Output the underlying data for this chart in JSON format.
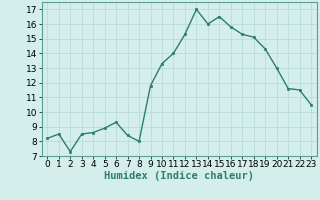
{
  "x": [
    0,
    1,
    2,
    3,
    4,
    5,
    6,
    7,
    8,
    9,
    10,
    11,
    12,
    13,
    14,
    15,
    16,
    17,
    18,
    19,
    20,
    21,
    22,
    23
  ],
  "y": [
    8.2,
    8.5,
    7.3,
    8.5,
    8.6,
    8.9,
    9.3,
    8.4,
    8.0,
    11.8,
    13.3,
    14.0,
    15.3,
    17.0,
    16.0,
    16.5,
    15.8,
    15.3,
    15.1,
    14.3,
    13.0,
    11.6,
    11.5,
    10.5
  ],
  "xlabel": "Humidex (Indice chaleur)",
  "xlim": [
    -0.5,
    23.5
  ],
  "ylim": [
    7,
    17.5
  ],
  "yticks": [
    7,
    8,
    9,
    10,
    11,
    12,
    13,
    14,
    15,
    16,
    17
  ],
  "xticks": [
    0,
    1,
    2,
    3,
    4,
    5,
    6,
    7,
    8,
    9,
    10,
    11,
    12,
    13,
    14,
    15,
    16,
    17,
    18,
    19,
    20,
    21,
    22,
    23
  ],
  "line_color": "#2e7d6e",
  "bg_color": "#d4eeeb",
  "grid_color": "#b8ddd8",
  "xlabel_fontsize": 7.5,
  "tick_fontsize": 6.5
}
